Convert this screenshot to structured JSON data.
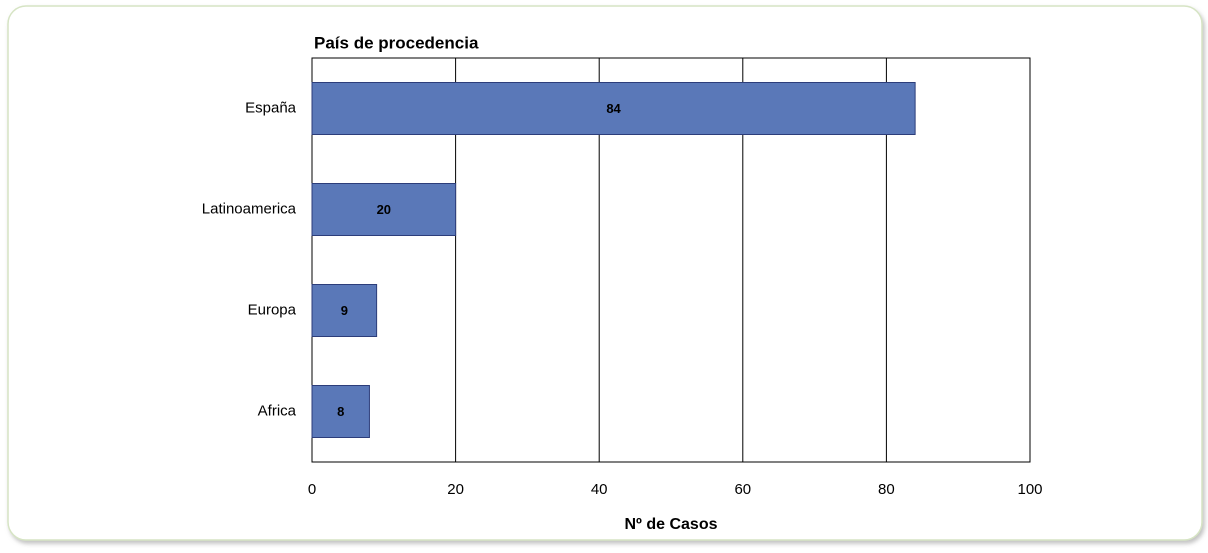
{
  "chart_data": {
    "type": "bar",
    "orientation": "horizontal",
    "title": "País de procedencia",
    "x_label": "Nº de Casos",
    "categories": [
      "España",
      "Latinoamerica",
      "Europa",
      "Africa"
    ],
    "values": [
      84,
      20,
      9,
      8
    ],
    "color": "#5a78b8",
    "xlim": [
      0,
      100
    ],
    "xticks": [
      0,
      20,
      40,
      60,
      80,
      100
    ],
    "grid": true
  }
}
